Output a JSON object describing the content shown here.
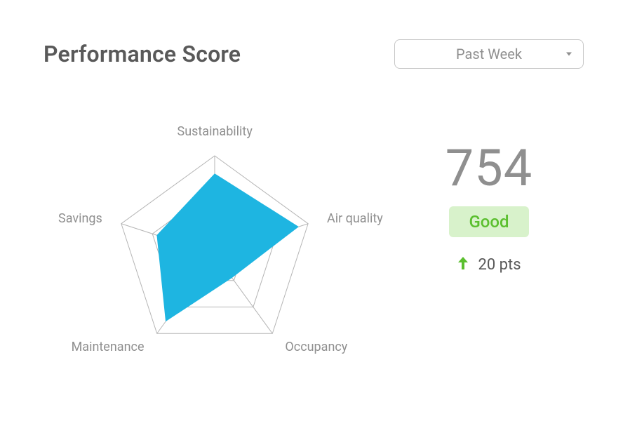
{
  "header": {
    "title": "Performance Score",
    "dropdown_selected": "Past Week"
  },
  "radar": {
    "type": "radar",
    "axes": [
      {
        "label": "Sustainability",
        "value": 0.82
      },
      {
        "label": "Air quality",
        "value": 0.9
      },
      {
        "label": "Occupancy",
        "value": 0.3
      },
      {
        "label": "Maintenance",
        "value": 0.85
      },
      {
        "label": "Savings",
        "value": 0.62
      }
    ],
    "rings": 3,
    "max_radius": 140,
    "fill_color": "#1eb5e1",
    "fill_opacity": 1.0,
    "grid_color": "#b5b5b5",
    "grid_stroke_width": 1,
    "label_color": "#8f8f8f",
    "label_fontsize": 18,
    "background_color": "#ffffff"
  },
  "score": {
    "value": "754",
    "rating": "Good",
    "rating_color": "#5bbf2f",
    "rating_bg": "#d8f2cb",
    "delta_text": "20 pts",
    "delta_direction": "up",
    "delta_color": "#5bbf2f"
  }
}
